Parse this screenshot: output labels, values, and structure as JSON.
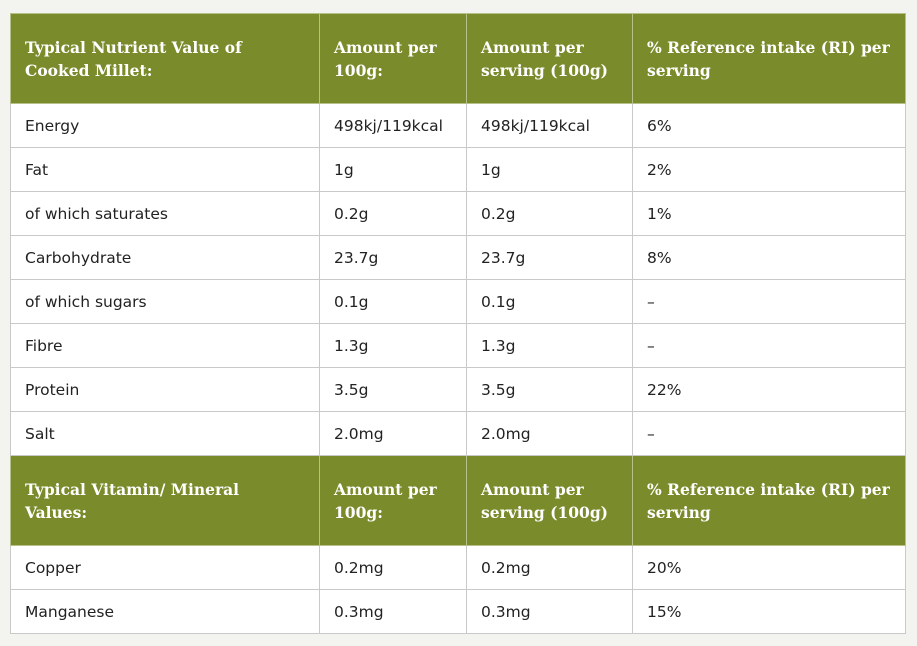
{
  "nutrient_table": {
    "headers": [
      "Typical Nutrient Value of Cooked Millet:",
      "Amount per 100g:",
      "Amount per serving (100g)",
      "% Reference intake (RI) per serving"
    ],
    "rows": [
      [
        "Energy",
        "498kj/119kcal",
        "498kj/119kcal",
        "6%"
      ],
      [
        "Fat",
        "1g",
        "1g",
        "2%"
      ],
      [
        "of which saturates",
        "0.2g",
        "0.2g",
        "1%"
      ],
      [
        "Carbohydrate",
        "23.7g",
        "23.7g",
        "8%"
      ],
      [
        "of which sugars",
        "0.1g",
        "0.1g",
        "–"
      ],
      [
        "Fibre",
        "1.3g",
        "1.3g",
        "–"
      ],
      [
        "Protein",
        "3.5g",
        "3.5g",
        "22%"
      ],
      [
        "Salt",
        "2.0mg",
        "2.0mg",
        "–"
      ]
    ]
  },
  "vitamin_table": {
    "headers": [
      "Typical Vitamin/ Mineral Values:",
      "Amount per 100g:",
      "Amount per serving (100g)",
      "% Reference intake (RI) per serving"
    ],
    "rows": [
      [
        "Copper",
        "0.2mg",
        "0.2mg",
        "20%"
      ],
      [
        "Manganese",
        "0.3mg",
        "0.3mg",
        "15%"
      ]
    ]
  },
  "colors": {
    "header_bg": "#7a8b2c",
    "header_text": "#ffffff",
    "page_bg": "#f3f3f0"
  }
}
